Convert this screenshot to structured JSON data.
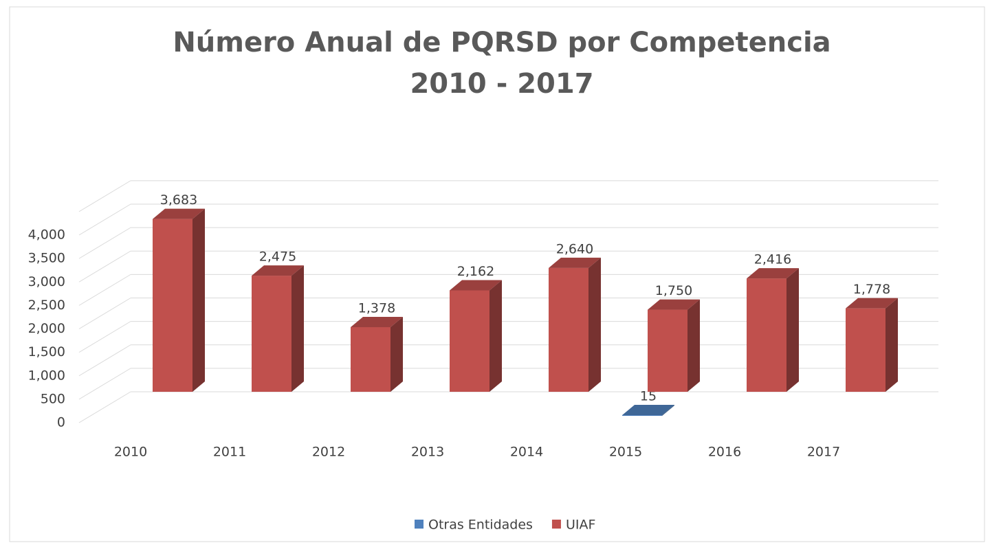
{
  "chart_data": {
    "type": "bar3d",
    "title": [
      "Número Anual de PQRSD por Competencia",
      "2010 - 2017"
    ],
    "categories": [
      "2010",
      "2011",
      "2012",
      "2013",
      "2014",
      "2015",
      "2016",
      "2017"
    ],
    "series": [
      {
        "name": "Otras Entidades",
        "color": "#4f81bd",
        "values": [
          null,
          null,
          null,
          null,
          null,
          15,
          null,
          null
        ]
      },
      {
        "name": "UIAF",
        "color": "#c0504d",
        "values": [
          3683,
          2475,
          1378,
          2162,
          2640,
          1750,
          2416,
          1778
        ],
        "value_labels": [
          "3,683",
          "2,475",
          "1,378",
          "2,162",
          "2,640",
          "1,750",
          "2,416",
          "1,778"
        ]
      }
    ],
    "ylim": [
      0,
      4500
    ],
    "yticks": [
      0,
      500,
      {
        "value": 1000,
        "label": "1,000"
      },
      {
        "value": 1500,
        "label": "1,500"
      },
      {
        "value": 2000,
        "label": "2,000"
      },
      {
        "value": 2500,
        "label": "2,500"
      },
      {
        "value": 3000,
        "label": "3,000"
      },
      {
        "value": 3500,
        "label": "3,500"
      },
      {
        "value": 4000,
        "label": "4,000"
      }
    ],
    "grid": true,
    "legend": "bottom"
  }
}
